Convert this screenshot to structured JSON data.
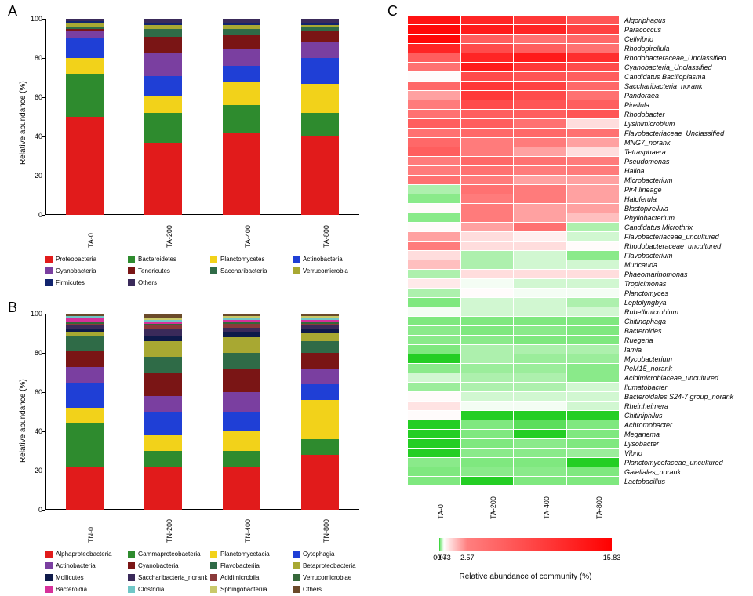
{
  "panels": {
    "A": "A",
    "B": "B",
    "C": "C"
  },
  "chartA": {
    "type": "stacked-bar",
    "ylabel": "Relative abundance (%)",
    "ylim": [
      0,
      100
    ],
    "ytick_step": 20,
    "categories": [
      "TA-0",
      "TA-200",
      "TA-400",
      "TA-800"
    ],
    "series": [
      {
        "name": "Proteobacteria",
        "color": "#e11b1b"
      },
      {
        "name": "Bacteroidetes",
        "color": "#2e8b2e"
      },
      {
        "name": "Planctomycetes",
        "color": "#f2d21a"
      },
      {
        "name": "Actinobacteria",
        "color": "#1f3fd6"
      },
      {
        "name": "Cyanobacteria",
        "color": "#7a3fa0"
      },
      {
        "name": "Tenericutes",
        "color": "#7a1515"
      },
      {
        "name": "Saccharibacteria",
        "color": "#2f6b47"
      },
      {
        "name": "Verrucomicrobia",
        "color": "#a8a832"
      },
      {
        "name": "Firmicutes",
        "color": "#12246e"
      },
      {
        "name": "Others",
        "color": "#3a2a5a"
      }
    ],
    "values": [
      [
        50,
        22,
        8,
        10,
        4,
        1,
        1,
        2,
        1,
        1
      ],
      [
        37,
        15,
        9,
        10,
        12,
        8,
        4,
        2,
        1,
        2
      ],
      [
        42,
        14,
        12,
        8,
        9,
        7,
        3,
        2,
        1,
        2
      ],
      [
        40,
        12,
        15,
        13,
        8,
        6,
        2,
        1,
        1,
        2
      ]
    ],
    "bar_width": 0.22
  },
  "chartB": {
    "type": "stacked-bar",
    "ylabel": "Relative abundance (%)",
    "ylim": [
      0,
      100
    ],
    "ytick_step": 20,
    "categories": [
      "TN-0",
      "TN-200",
      "TN-400",
      "TN-800"
    ],
    "series": [
      {
        "name": "Alphaproteobacteria",
        "color": "#e11b1b"
      },
      {
        "name": "Gammaproteobacteria",
        "color": "#2e8b2e"
      },
      {
        "name": "Planctomycetacia",
        "color": "#f2d21a"
      },
      {
        "name": "Cytophagia",
        "color": "#1f3fd6"
      },
      {
        "name": "Actinobacteria",
        "color": "#7a3fa0"
      },
      {
        "name": "Cyanobacteria",
        "color": "#7a1515"
      },
      {
        "name": "Flavobacteriia",
        "color": "#2f6b47"
      },
      {
        "name": "Betaproteobacteria",
        "color": "#a8a832"
      },
      {
        "name": "Mollicutes",
        "color": "#0e1a4a"
      },
      {
        "name": "Saccharibacteria_norank",
        "color": "#3a2a5a"
      },
      {
        "name": "Acidimicrobiia",
        "color": "#8a3a3a"
      },
      {
        "name": "Verrucomicrobiae",
        "color": "#35683a"
      },
      {
        "name": "Bacteroidia",
        "color": "#d6309a"
      },
      {
        "name": "Clostridia",
        "color": "#6fc7c7"
      },
      {
        "name": "Sphingobacteriia",
        "color": "#c9c96a"
      },
      {
        "name": "Others",
        "color": "#6b4a2a"
      }
    ],
    "values": [
      [
        22,
        22,
        8,
        13,
        8,
        8,
        8,
        2,
        1,
        2,
        1,
        1,
        2,
        1,
        0,
        1
      ],
      [
        22,
        8,
        8,
        12,
        8,
        12,
        8,
        8,
        3,
        3,
        2,
        1,
        1,
        1,
        1,
        2
      ],
      [
        22,
        8,
        10,
        10,
        10,
        12,
        8,
        8,
        3,
        2,
        2,
        1,
        1,
        1,
        1,
        1
      ],
      [
        28,
        8,
        20,
        8,
        8,
        8,
        6,
        4,
        2,
        2,
        1,
        1,
        1,
        1,
        1,
        1
      ]
    ],
    "bar_width": 0.22
  },
  "heatmap": {
    "type": "heatmap",
    "columns": [
      "TA-0",
      "TA-200",
      "TA-400",
      "TA-800"
    ],
    "rows": [
      "Algoriphagus",
      "Paracoccus",
      "Cellvibrio",
      "Rhodopirellula",
      "Rhodobacteraceae_Unclassified",
      "Cyanobacteria_Unclassified",
      "Candidatus Bacilloplasma",
      "Saccharibacteria_norank",
      "Pandoraea",
      "Pirellula",
      "Rhodobacter",
      "Lysinimicrobium",
      "Flavobacteriaceae_Unclassified",
      "MNG7_norank",
      "Tetrasphaera",
      "Pseudomonas",
      "Halioa",
      "Microbacterium",
      "Pir4 lineage",
      "Haloferula",
      "Blastopirellula",
      "Phyllobacterium",
      "Candidatus Microthrix",
      "Flavobacteriaceae_uncultured",
      "Rhodobacteraceae_uncultured",
      "Flavobacterium",
      "Muricauda",
      "Phaeomarinomonas",
      "Tropicimonas",
      "Planctomyces",
      "Leptolyngbya",
      "Rubellimicrobium",
      "Chitinophaga",
      "Bacteroides",
      "Ruegeria",
      "Iamia",
      "Mycobacterium",
      "PeM15_norank",
      "Acidimicrobiaceae_uncultured",
      "Ilumatobacter",
      "Bacteroidales S24-7 group_norank",
      "Rheinheimera",
      "Chitiniphilus",
      "Achromobacter",
      "Meganema",
      "Lysobacter",
      "Vibrio",
      "Planctomycefaceae_uncultured",
      "Gaiellales_norank",
      "Lactobacillus"
    ],
    "values": [
      [
        14,
        12,
        10,
        7
      ],
      [
        15,
        13,
        12,
        9
      ],
      [
        15,
        6,
        4,
        5
      ],
      [
        12,
        8,
        6,
        4
      ],
      [
        6,
        12,
        13,
        11
      ],
      [
        4,
        13,
        10,
        8
      ],
      [
        0.5,
        8,
        7,
        6
      ],
      [
        5,
        10,
        9,
        5
      ],
      [
        2,
        10,
        8,
        4
      ],
      [
        3,
        8,
        7,
        6
      ],
      [
        4,
        6,
        6,
        7
      ],
      [
        6,
        6,
        4,
        1
      ],
      [
        4,
        5,
        5,
        4
      ],
      [
        5,
        3,
        3,
        2
      ],
      [
        6,
        3,
        2,
        1
      ],
      [
        3,
        5,
        4,
        3
      ],
      [
        3,
        4,
        3,
        3
      ],
      [
        4,
        3,
        2,
        2
      ],
      [
        0.2,
        4,
        3,
        2
      ],
      [
        0.1,
        3,
        3,
        2
      ],
      [
        0.5,
        3,
        2,
        2
      ],
      [
        0.1,
        3,
        2,
        1.5
      ],
      [
        0.5,
        2,
        4,
        0.2
      ],
      [
        2,
        1,
        0.7,
        0.3
      ],
      [
        3,
        1,
        1,
        0.5
      ],
      [
        1,
        0.2,
        0.3,
        0.1
      ],
      [
        1.5,
        0.2,
        0.3,
        0.3
      ],
      [
        0.2,
        1,
        1,
        1
      ],
      [
        0.8,
        0.4,
        0.3,
        0.3
      ],
      [
        0.2,
        0.5,
        0.4,
        0.4
      ],
      [
        0.07,
        0.3,
        0.3,
        0.2
      ],
      [
        0.4,
        0.3,
        0.3,
        0.3
      ],
      [
        0.07,
        0.07,
        0.07,
        0.07
      ],
      [
        0.1,
        0.07,
        0.1,
        0.07
      ],
      [
        0.1,
        0.1,
        0.07,
        0.07
      ],
      [
        0.07,
        0.2,
        0.2,
        0.2
      ],
      [
        0.02,
        0.2,
        0.15,
        0.15
      ],
      [
        0.1,
        0.15,
        0.15,
        0.1
      ],
      [
        0.3,
        0.2,
        0.2,
        0.1
      ],
      [
        0.15,
        0.2,
        0.2,
        0.3
      ],
      [
        0.5,
        0.3,
        0.3,
        0.3
      ],
      [
        0.9,
        0.4,
        0.4,
        0.3
      ],
      [
        0.5,
        0.02,
        0.02,
        0.02
      ],
      [
        0.02,
        0.07,
        0.05,
        0.07
      ],
      [
        0.02,
        0.07,
        0.02,
        0.07
      ],
      [
        0.02,
        0.07,
        0.1,
        0.07
      ],
      [
        0.02,
        0.1,
        0.1,
        0.15
      ],
      [
        0.1,
        0.07,
        0.07,
        0.02
      ],
      [
        0.07,
        0.1,
        0.1,
        0.07
      ],
      [
        0.07,
        0.02,
        0.07,
        0.07
      ]
    ],
    "colorscale": {
      "stops": [
        0,
        0.07,
        0.43,
        2.57,
        15.83
      ],
      "colors": [
        "#00c400",
        "#7fe87f",
        "#ffffff",
        "#ff7f7f",
        "#ff0000"
      ]
    },
    "colorbar_title": "Relative abundance of community (%)"
  }
}
